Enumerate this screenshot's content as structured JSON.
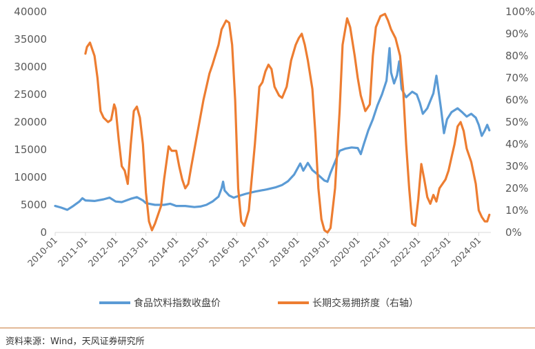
{
  "chart_data": {
    "type": "line",
    "title": "",
    "xlabel": "",
    "ylabel": "",
    "x_ticks": [
      "2010-01",
      "2011-01",
      "2012-01",
      "2013-01",
      "2014-01",
      "2015-01",
      "2016-01",
      "2017-01",
      "2018-01",
      "2019-01",
      "2020-01",
      "2021-01",
      "2022-01",
      "2023-01",
      "2024-01"
    ],
    "x_range": [
      2010.0,
      2024.4
    ],
    "y_left": {
      "range": [
        0,
        40000
      ],
      "ticks": [
        "0",
        "5000",
        "10000",
        "15000",
        "20000",
        "25000",
        "30000",
        "35000",
        "40000"
      ]
    },
    "y_right": {
      "range": [
        0,
        1
      ],
      "ticks": [
        "0%",
        "10%",
        "20%",
        "30%",
        "40%",
        "50%",
        "60%",
        "70%",
        "80%",
        "90%",
        "100%"
      ]
    },
    "grid": false,
    "legend_position": "bottom",
    "series": [
      {
        "name": "食品饮料指数收盘价",
        "axis": "left",
        "color": "#5b9bd5",
        "points": [
          [
            2010.0,
            4800
          ],
          [
            2010.2,
            4500
          ],
          [
            2010.4,
            4100
          ],
          [
            2010.6,
            4800
          ],
          [
            2010.8,
            5600
          ],
          [
            2010.9,
            6200
          ],
          [
            2011.0,
            5800
          ],
          [
            2011.3,
            5700
          ],
          [
            2011.6,
            6000
          ],
          [
            2011.8,
            6300
          ],
          [
            2012.0,
            5600
          ],
          [
            2012.2,
            5500
          ],
          [
            2012.5,
            6100
          ],
          [
            2012.7,
            6400
          ],
          [
            2012.9,
            5800
          ],
          [
            2013.0,
            5300
          ],
          [
            2013.3,
            5000
          ],
          [
            2013.6,
            5000
          ],
          [
            2013.8,
            5200
          ],
          [
            2014.0,
            4800
          ],
          [
            2014.3,
            4800
          ],
          [
            2014.6,
            4600
          ],
          [
            2014.8,
            4700
          ],
          [
            2015.0,
            5000
          ],
          [
            2015.2,
            5600
          ],
          [
            2015.4,
            6500
          ],
          [
            2015.5,
            8000
          ],
          [
            2015.55,
            9200
          ],
          [
            2015.6,
            7600
          ],
          [
            2015.75,
            6700
          ],
          [
            2015.9,
            6300
          ],
          [
            2016.0,
            6500
          ],
          [
            2016.3,
            7000
          ],
          [
            2016.6,
            7400
          ],
          [
            2016.9,
            7700
          ],
          [
            2017.0,
            7800
          ],
          [
            2017.3,
            8200
          ],
          [
            2017.5,
            8600
          ],
          [
            2017.7,
            9300
          ],
          [
            2017.9,
            10500
          ],
          [
            2018.0,
            11500
          ],
          [
            2018.1,
            12500
          ],
          [
            2018.2,
            11200
          ],
          [
            2018.35,
            12600
          ],
          [
            2018.5,
            11300
          ],
          [
            2018.7,
            10400
          ],
          [
            2018.9,
            9400
          ],
          [
            2019.0,
            9200
          ],
          [
            2019.1,
            10800
          ],
          [
            2019.25,
            12800
          ],
          [
            2019.4,
            14800
          ],
          [
            2019.6,
            15200
          ],
          [
            2019.8,
            15400
          ],
          [
            2020.0,
            15300
          ],
          [
            2020.1,
            14200
          ],
          [
            2020.2,
            16000
          ],
          [
            2020.35,
            18500
          ],
          [
            2020.5,
            20500
          ],
          [
            2020.65,
            23000
          ],
          [
            2020.8,
            25000
          ],
          [
            2020.95,
            27500
          ],
          [
            2021.05,
            33400
          ],
          [
            2021.1,
            29000
          ],
          [
            2021.2,
            27000
          ],
          [
            2021.3,
            28500
          ],
          [
            2021.37,
            31000
          ],
          [
            2021.45,
            26000
          ],
          [
            2021.6,
            24500
          ],
          [
            2021.8,
            25500
          ],
          [
            2021.95,
            25000
          ],
          [
            2022.05,
            23500
          ],
          [
            2022.15,
            21500
          ],
          [
            2022.3,
            22500
          ],
          [
            2022.5,
            25200
          ],
          [
            2022.6,
            28400
          ],
          [
            2022.75,
            22500
          ],
          [
            2022.85,
            18000
          ],
          [
            2022.95,
            20500
          ],
          [
            2023.1,
            21800
          ],
          [
            2023.3,
            22500
          ],
          [
            2023.45,
            21800
          ],
          [
            2023.6,
            21000
          ],
          [
            2023.75,
            21500
          ],
          [
            2023.9,
            20800
          ],
          [
            2024.0,
            19500
          ],
          [
            2024.1,
            17500
          ],
          [
            2024.2,
            18500
          ],
          [
            2024.28,
            19500
          ],
          [
            2024.35,
            18500
          ]
        ]
      },
      {
        "name": "长期交易拥挤度（右轴）",
        "axis": "right",
        "color": "#ed7d31",
        "points": [
          [
            2011.0,
            0.81
          ],
          [
            2011.05,
            0.84
          ],
          [
            2011.15,
            0.86
          ],
          [
            2011.3,
            0.8
          ],
          [
            2011.4,
            0.7
          ],
          [
            2011.5,
            0.55
          ],
          [
            2011.6,
            0.52
          ],
          [
            2011.75,
            0.5
          ],
          [
            2011.85,
            0.51
          ],
          [
            2011.95,
            0.58
          ],
          [
            2012.0,
            0.56
          ],
          [
            2012.1,
            0.42
          ],
          [
            2012.2,
            0.3
          ],
          [
            2012.3,
            0.28
          ],
          [
            2012.4,
            0.22
          ],
          [
            2012.5,
            0.4
          ],
          [
            2012.6,
            0.55
          ],
          [
            2012.7,
            0.57
          ],
          [
            2012.8,
            0.52
          ],
          [
            2012.9,
            0.4
          ],
          [
            2013.0,
            0.18
          ],
          [
            2013.1,
            0.05
          ],
          [
            2013.2,
            0.01
          ],
          [
            2013.3,
            0.04
          ],
          [
            2013.5,
            0.12
          ],
          [
            2013.6,
            0.24
          ],
          [
            2013.75,
            0.39
          ],
          [
            2013.85,
            0.37
          ],
          [
            2014.0,
            0.37
          ],
          [
            2014.1,
            0.3
          ],
          [
            2014.2,
            0.24
          ],
          [
            2014.3,
            0.2
          ],
          [
            2014.4,
            0.22
          ],
          [
            2014.5,
            0.3
          ],
          [
            2014.7,
            0.45
          ],
          [
            2014.9,
            0.6
          ],
          [
            2015.1,
            0.72
          ],
          [
            2015.2,
            0.76
          ],
          [
            2015.4,
            0.85
          ],
          [
            2015.5,
            0.92
          ],
          [
            2015.65,
            0.96
          ],
          [
            2015.75,
            0.95
          ],
          [
            2015.85,
            0.85
          ],
          [
            2015.95,
            0.6
          ],
          [
            2016.05,
            0.2
          ],
          [
            2016.15,
            0.05
          ],
          [
            2016.25,
            0.03
          ],
          [
            2016.4,
            0.1
          ],
          [
            2016.6,
            0.4
          ],
          [
            2016.75,
            0.66
          ],
          [
            2016.85,
            0.68
          ],
          [
            2016.95,
            0.73
          ],
          [
            2017.05,
            0.76
          ],
          [
            2017.15,
            0.74
          ],
          [
            2017.25,
            0.66
          ],
          [
            2017.4,
            0.62
          ],
          [
            2017.5,
            0.61
          ],
          [
            2017.65,
            0.66
          ],
          [
            2017.8,
            0.78
          ],
          [
            2017.95,
            0.85
          ],
          [
            2018.05,
            0.88
          ],
          [
            2018.15,
            0.9
          ],
          [
            2018.25,
            0.85
          ],
          [
            2018.35,
            0.78
          ],
          [
            2018.5,
            0.65
          ],
          [
            2018.6,
            0.45
          ],
          [
            2018.7,
            0.2
          ],
          [
            2018.8,
            0.06
          ],
          [
            2018.9,
            0.01
          ],
          [
            2019.0,
            0.0
          ],
          [
            2019.1,
            0.02
          ],
          [
            2019.25,
            0.2
          ],
          [
            2019.4,
            0.55
          ],
          [
            2019.5,
            0.85
          ],
          [
            2019.65,
            0.97
          ],
          [
            2019.75,
            0.93
          ],
          [
            2019.9,
            0.8
          ],
          [
            2020.0,
            0.7
          ],
          [
            2020.1,
            0.62
          ],
          [
            2020.25,
            0.55
          ],
          [
            2020.4,
            0.58
          ],
          [
            2020.5,
            0.8
          ],
          [
            2020.6,
            0.93
          ],
          [
            2020.75,
            0.98
          ],
          [
            2020.9,
            0.99
          ],
          [
            2021.0,
            0.96
          ],
          [
            2021.1,
            0.92
          ],
          [
            2021.25,
            0.88
          ],
          [
            2021.4,
            0.8
          ],
          [
            2021.5,
            0.65
          ],
          [
            2021.6,
            0.4
          ],
          [
            2021.7,
            0.2
          ],
          [
            2021.8,
            0.04
          ],
          [
            2021.9,
            0.03
          ],
          [
            2022.0,
            0.15
          ],
          [
            2022.1,
            0.31
          ],
          [
            2022.2,
            0.24
          ],
          [
            2022.3,
            0.16
          ],
          [
            2022.4,
            0.13
          ],
          [
            2022.5,
            0.17
          ],
          [
            2022.6,
            0.14
          ],
          [
            2022.7,
            0.2
          ],
          [
            2022.9,
            0.24
          ],
          [
            2023.0,
            0.28
          ],
          [
            2023.1,
            0.34
          ],
          [
            2023.2,
            0.4
          ],
          [
            2023.3,
            0.48
          ],
          [
            2023.4,
            0.5
          ],
          [
            2023.5,
            0.46
          ],
          [
            2023.6,
            0.38
          ],
          [
            2023.75,
            0.32
          ],
          [
            2023.9,
            0.22
          ],
          [
            2024.0,
            0.1
          ],
          [
            2024.1,
            0.07
          ],
          [
            2024.2,
            0.05
          ],
          [
            2024.28,
            0.05
          ],
          [
            2024.35,
            0.08
          ]
        ]
      }
    ]
  },
  "footer": {
    "source": "资料来源：Wind，天风证券研究所"
  }
}
